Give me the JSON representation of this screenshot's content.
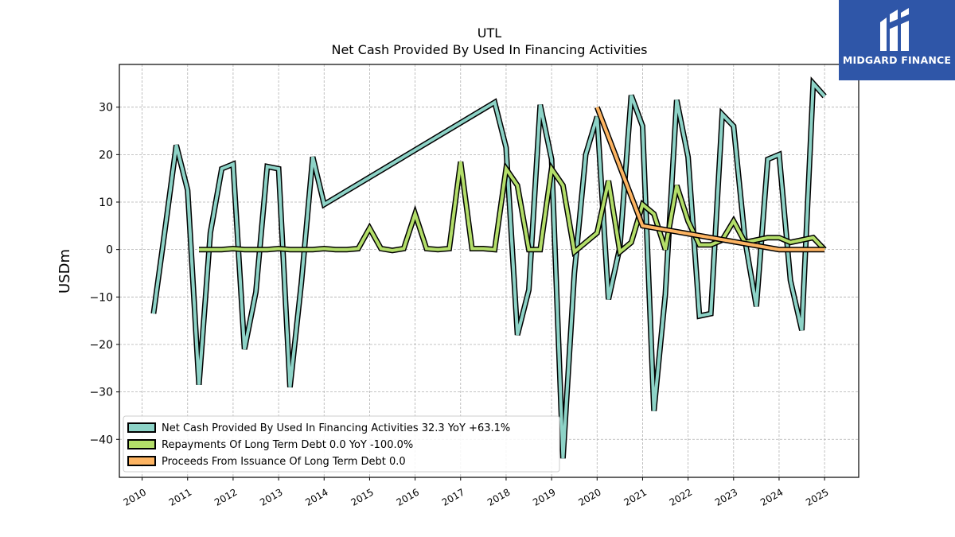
{
  "chart_data": {
    "type": "line",
    "title": "UTL",
    "subtitle": "Net Cash Provided By Used In Financing Activities",
    "xlabel": "",
    "ylabel": "USDm",
    "xlim": [
      2009.5,
      2025.75
    ],
    "ylim": [
      -48,
      39
    ],
    "x_ticks": [
      "2010",
      "2011",
      "2012",
      "2013",
      "2014",
      "2015",
      "2016",
      "2017",
      "2018",
      "2019",
      "2020",
      "2021",
      "2022",
      "2023",
      "2024",
      "2025"
    ],
    "y_ticks": [
      30,
      20,
      10,
      0,
      -10,
      -20,
      -30,
      -40
    ],
    "y_tick_labels": [
      "30",
      "20",
      "10",
      "0",
      "−10",
      "−20",
      "−30",
      "−40"
    ],
    "grid": true,
    "legend_position": "lower-left",
    "series": [
      {
        "name": "Net Cash Provided By Used In Financing Activities",
        "legend_label": "Net Cash Provided By Used In Financing Activities  32.3 YoY +63.1%",
        "color": "#8dd3c7",
        "x": [
          2010.25,
          2010.5,
          2010.75,
          2011.0,
          2011.25,
          2011.5,
          2011.75,
          2012.0,
          2012.25,
          2012.5,
          2012.75,
          2013.0,
          2013.25,
          2013.5,
          2013.75,
          2014.0,
          2017.75,
          2018.0,
          2018.25,
          2018.5,
          2018.75,
          2019.0,
          2019.25,
          2019.5,
          2019.75,
          2020.0,
          2020.25,
          2020.5,
          2020.75,
          2021.0,
          2021.25,
          2021.5,
          2021.75,
          2022.0,
          2022.25,
          2022.5,
          2022.75,
          2023.0,
          2023.25,
          2023.5,
          2023.75,
          2024.0,
          2024.25,
          2024.5,
          2024.75,
          2025.0
        ],
        "values": [
          -13.5,
          4.0,
          22.0,
          12.5,
          -28.5,
          3.5,
          17.0,
          18.0,
          -21.0,
          -9.0,
          17.5,
          17.0,
          -29.0,
          -7.0,
          19.5,
          9.5,
          31.0,
          21.5,
          -18.0,
          -8.5,
          30.5,
          19.0,
          -44.0,
          -5.0,
          20.0,
          28.0,
          -10.5,
          0.5,
          32.5,
          26.0,
          -34.0,
          -9.5,
          31.5,
          19.5,
          -14.0,
          -13.5,
          28.5,
          26.0,
          2.0,
          -12.0,
          19.0,
          20.0,
          -6.5,
          -17.0,
          35.0,
          32.3
        ]
      },
      {
        "name": "Repayments Of Long Term Debt",
        "legend_label": "Repayments Of Long Term Debt  0.0 YoY -100.0%",
        "color": "#b3de69",
        "x": [
          2011.25,
          2011.5,
          2011.75,
          2012.0,
          2012.25,
          2012.5,
          2012.75,
          2013.0,
          2013.25,
          2013.5,
          2013.75,
          2014.0,
          2014.25,
          2014.5,
          2014.75,
          2015.0,
          2015.25,
          2015.5,
          2015.75,
          2016.0,
          2016.25,
          2016.5,
          2016.75,
          2017.0,
          2017.25,
          2017.5,
          2017.75,
          2018.0,
          2018.25,
          2018.5,
          2018.75,
          2019.0,
          2019.25,
          2019.5,
          2019.75,
          2020.0,
          2020.25,
          2020.5,
          2020.75,
          2021.0,
          2021.25,
          2021.5,
          2021.75,
          2022.0,
          2022.25,
          2022.5,
          2022.75,
          2023.0,
          2023.25,
          2023.5,
          2023.75,
          2024.0,
          2024.25,
          2024.5,
          2024.75,
          2025.0
        ],
        "values": [
          0.0,
          0.0,
          0.0,
          0.2,
          0.0,
          0.0,
          0.0,
          0.2,
          0.0,
          0.0,
          0.0,
          0.2,
          0.0,
          0.0,
          0.2,
          4.5,
          0.2,
          -0.2,
          0.2,
          7.5,
          0.2,
          0.0,
          0.2,
          18.5,
          0.2,
          0.2,
          0.0,
          17.0,
          13.5,
          0.0,
          0.0,
          17.0,
          13.5,
          -0.5,
          1.5,
          3.5,
          14.5,
          -0.5,
          1.5,
          9.5,
          7.5,
          0.0,
          13.5,
          6.0,
          1.0,
          1.0,
          2.0,
          6.0,
          1.5,
          2.0,
          2.5,
          2.5,
          1.5,
          2.0,
          2.5,
          0.0
        ]
      },
      {
        "name": "Proceeds From Issuance Of Long Term Debt",
        "legend_label": "Proceeds From Issuance Of Long Term Debt  0.0",
        "color": "#fdb462",
        "x": [
          2020.0,
          2021.0,
          2024.0,
          2025.0
        ],
        "values": [
          30.0,
          5.0,
          0.0,
          0.0
        ]
      }
    ]
  },
  "logo": {
    "text": "MIDGARD FINANCE",
    "icon": "midgard-m-icon"
  }
}
